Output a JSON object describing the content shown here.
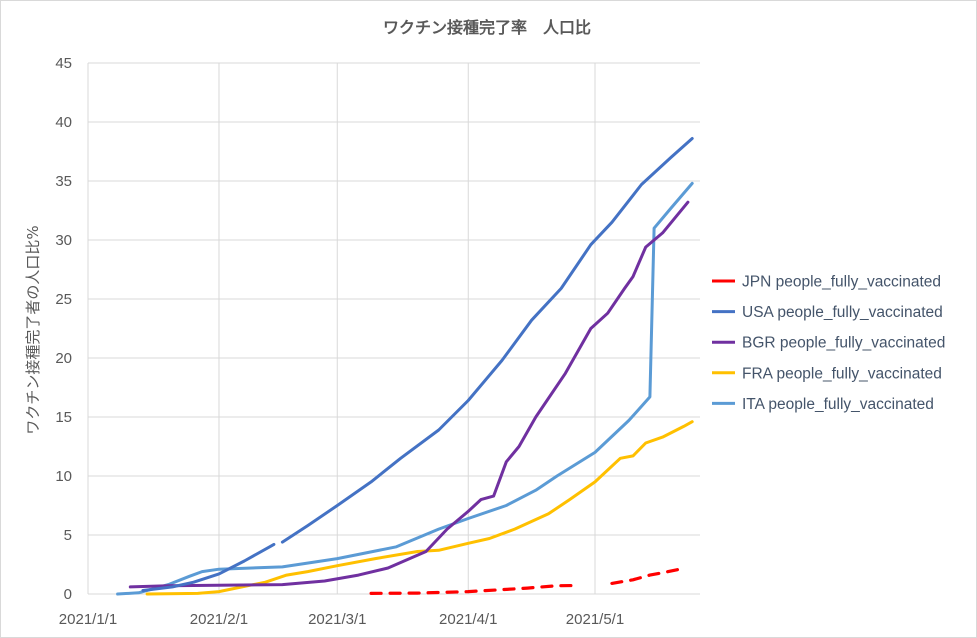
{
  "chart_data": {
    "type": "line",
    "title": "ワクチン接種完了率　人口比",
    "ylabel": "ワクチン接種完了者の人口比%",
    "xlabel": "",
    "ylim": [
      0,
      45
    ],
    "yticks": [
      0,
      5,
      10,
      15,
      20,
      25,
      30,
      35,
      40,
      45
    ],
    "xlim": [
      "2021-01-01",
      "2021-05-24"
    ],
    "xticks": [
      {
        "date": "2021-01-01",
        "label": "2021/1/1"
      },
      {
        "date": "2021-02-01",
        "label": "2021/2/1"
      },
      {
        "date": "2021-03-01",
        "label": "2021/3/1"
      },
      {
        "date": "2021-04-01",
        "label": "2021/4/1"
      },
      {
        "date": "2021-05-01",
        "label": "2021/5/1"
      }
    ],
    "grid": true,
    "legend_position": "right",
    "series": [
      {
        "name": "JPN people_fully_vaccinated",
        "color": "#FF0000",
        "dashed": true,
        "points": [
          [
            "2021-03-09",
            0.05
          ],
          [
            "2021-03-20",
            0.08
          ],
          [
            "2021-04-01",
            0.2
          ],
          [
            "2021-04-08",
            0.35
          ],
          [
            "2021-04-15",
            0.5
          ],
          [
            "2021-04-22",
            0.7
          ],
          [
            "2021-04-27",
            0.72
          ],
          [
            "2021-04-30",
            null
          ],
          [
            "2021-05-05",
            0.9
          ],
          [
            "2021-05-10",
            1.2
          ],
          [
            "2021-05-14",
            1.6
          ],
          [
            "2021-05-17",
            1.8
          ],
          [
            "2021-05-21",
            2.1
          ]
        ]
      },
      {
        "name": "USA people_fully_vaccinated",
        "color": "#4472C4",
        "dashed": false,
        "points": [
          [
            "2021-01-14",
            0.3
          ],
          [
            "2021-01-21",
            0.6
          ],
          [
            "2021-01-26",
            1.0
          ],
          [
            "2021-02-01",
            1.7
          ],
          [
            "2021-02-07",
            2.8
          ],
          [
            "2021-02-13",
            4.0
          ],
          [
            "2021-02-14",
            4.2
          ],
          [
            "2021-02-15",
            null
          ],
          [
            "2021-02-16",
            4.4
          ],
          [
            "2021-02-22",
            5.8
          ],
          [
            "2021-03-01",
            7.5
          ],
          [
            "2021-03-09",
            9.5
          ],
          [
            "2021-03-16",
            11.5
          ],
          [
            "2021-03-25",
            13.9
          ],
          [
            "2021-04-01",
            16.4
          ],
          [
            "2021-04-09",
            19.8
          ],
          [
            "2021-04-16",
            23.2
          ],
          [
            "2021-04-23",
            25.9
          ],
          [
            "2021-04-30",
            29.6
          ],
          [
            "2021-05-05",
            31.5
          ],
          [
            "2021-05-12",
            34.7
          ],
          [
            "2021-05-19",
            37.0
          ],
          [
            "2021-05-24",
            38.6
          ]
        ]
      },
      {
        "name": "BGR people_fully_vaccinated",
        "color": "#7030A0",
        "dashed": false,
        "points": [
          [
            "2021-01-11",
            0.6
          ],
          [
            "2021-01-20",
            0.7
          ],
          [
            "2021-02-16",
            0.8
          ],
          [
            "2021-02-26",
            1.1
          ],
          [
            "2021-03-06",
            1.6
          ],
          [
            "2021-03-13",
            2.2
          ],
          [
            "2021-03-22",
            3.6
          ],
          [
            "2021-03-27",
            5.5
          ],
          [
            "2021-04-01",
            7.0
          ],
          [
            "2021-04-04",
            8.0
          ],
          [
            "2021-04-07",
            8.3
          ],
          [
            "2021-04-10",
            11.2
          ],
          [
            "2021-04-13",
            12.5
          ],
          [
            "2021-04-17",
            15.0
          ],
          [
            "2021-04-24",
            18.7
          ],
          [
            "2021-04-30",
            22.5
          ],
          [
            "2021-05-04",
            23.8
          ],
          [
            "2021-05-08",
            25.9
          ],
          [
            "2021-05-10",
            26.9
          ],
          [
            "2021-05-13",
            29.4
          ],
          [
            "2021-05-17",
            30.6
          ],
          [
            "2021-05-23",
            33.2
          ]
        ]
      },
      {
        "name": "FRA people_fully_vaccinated",
        "color": "#FFC000",
        "dashed": false,
        "points": [
          [
            "2021-01-15",
            0.0
          ],
          [
            "2021-01-27",
            0.05
          ],
          [
            "2021-02-01",
            0.2
          ],
          [
            "2021-02-05",
            0.5
          ],
          [
            "2021-02-12",
            1.0
          ],
          [
            "2021-02-17",
            1.6
          ],
          [
            "2021-02-22",
            1.9
          ],
          [
            "2021-03-01",
            2.4
          ],
          [
            "2021-03-10",
            3.0
          ],
          [
            "2021-03-20",
            3.6
          ],
          [
            "2021-03-25",
            3.7
          ],
          [
            "2021-04-01",
            4.3
          ],
          [
            "2021-04-06",
            4.7
          ],
          [
            "2021-04-12",
            5.5
          ],
          [
            "2021-04-20",
            6.8
          ],
          [
            "2021-04-25",
            8.0
          ],
          [
            "2021-05-01",
            9.5
          ],
          [
            "2021-05-07",
            11.5
          ],
          [
            "2021-05-10",
            11.7
          ],
          [
            "2021-05-13",
            12.8
          ],
          [
            "2021-05-17",
            13.3
          ],
          [
            "2021-05-22",
            14.2
          ],
          [
            "2021-05-24",
            14.6
          ]
        ]
      },
      {
        "name": "ITA people_fully_vaccinated",
        "color": "#5B9BD5",
        "dashed": false,
        "points": [
          [
            "2021-01-08",
            0.0
          ],
          [
            "2021-01-13",
            0.1
          ],
          [
            "2021-01-20",
            0.8
          ],
          [
            "2021-01-25",
            1.5
          ],
          [
            "2021-01-28",
            1.9
          ],
          [
            "2021-02-01",
            2.1
          ],
          [
            "2021-02-16",
            2.3
          ],
          [
            "2021-03-01",
            3.0
          ],
          [
            "2021-03-15",
            4.0
          ],
          [
            "2021-03-25",
            5.5
          ],
          [
            "2021-04-01",
            6.4
          ],
          [
            "2021-04-10",
            7.5
          ],
          [
            "2021-04-17",
            8.8
          ],
          [
            "2021-04-22",
            10.0
          ],
          [
            "2021-05-01",
            12.0
          ],
          [
            "2021-05-09",
            14.7
          ],
          [
            "2021-05-14",
            16.7
          ],
          [
            "2021-05-15",
            31.0
          ],
          [
            "2021-05-19",
            32.7
          ],
          [
            "2021-05-24",
            34.8
          ]
        ]
      }
    ]
  }
}
